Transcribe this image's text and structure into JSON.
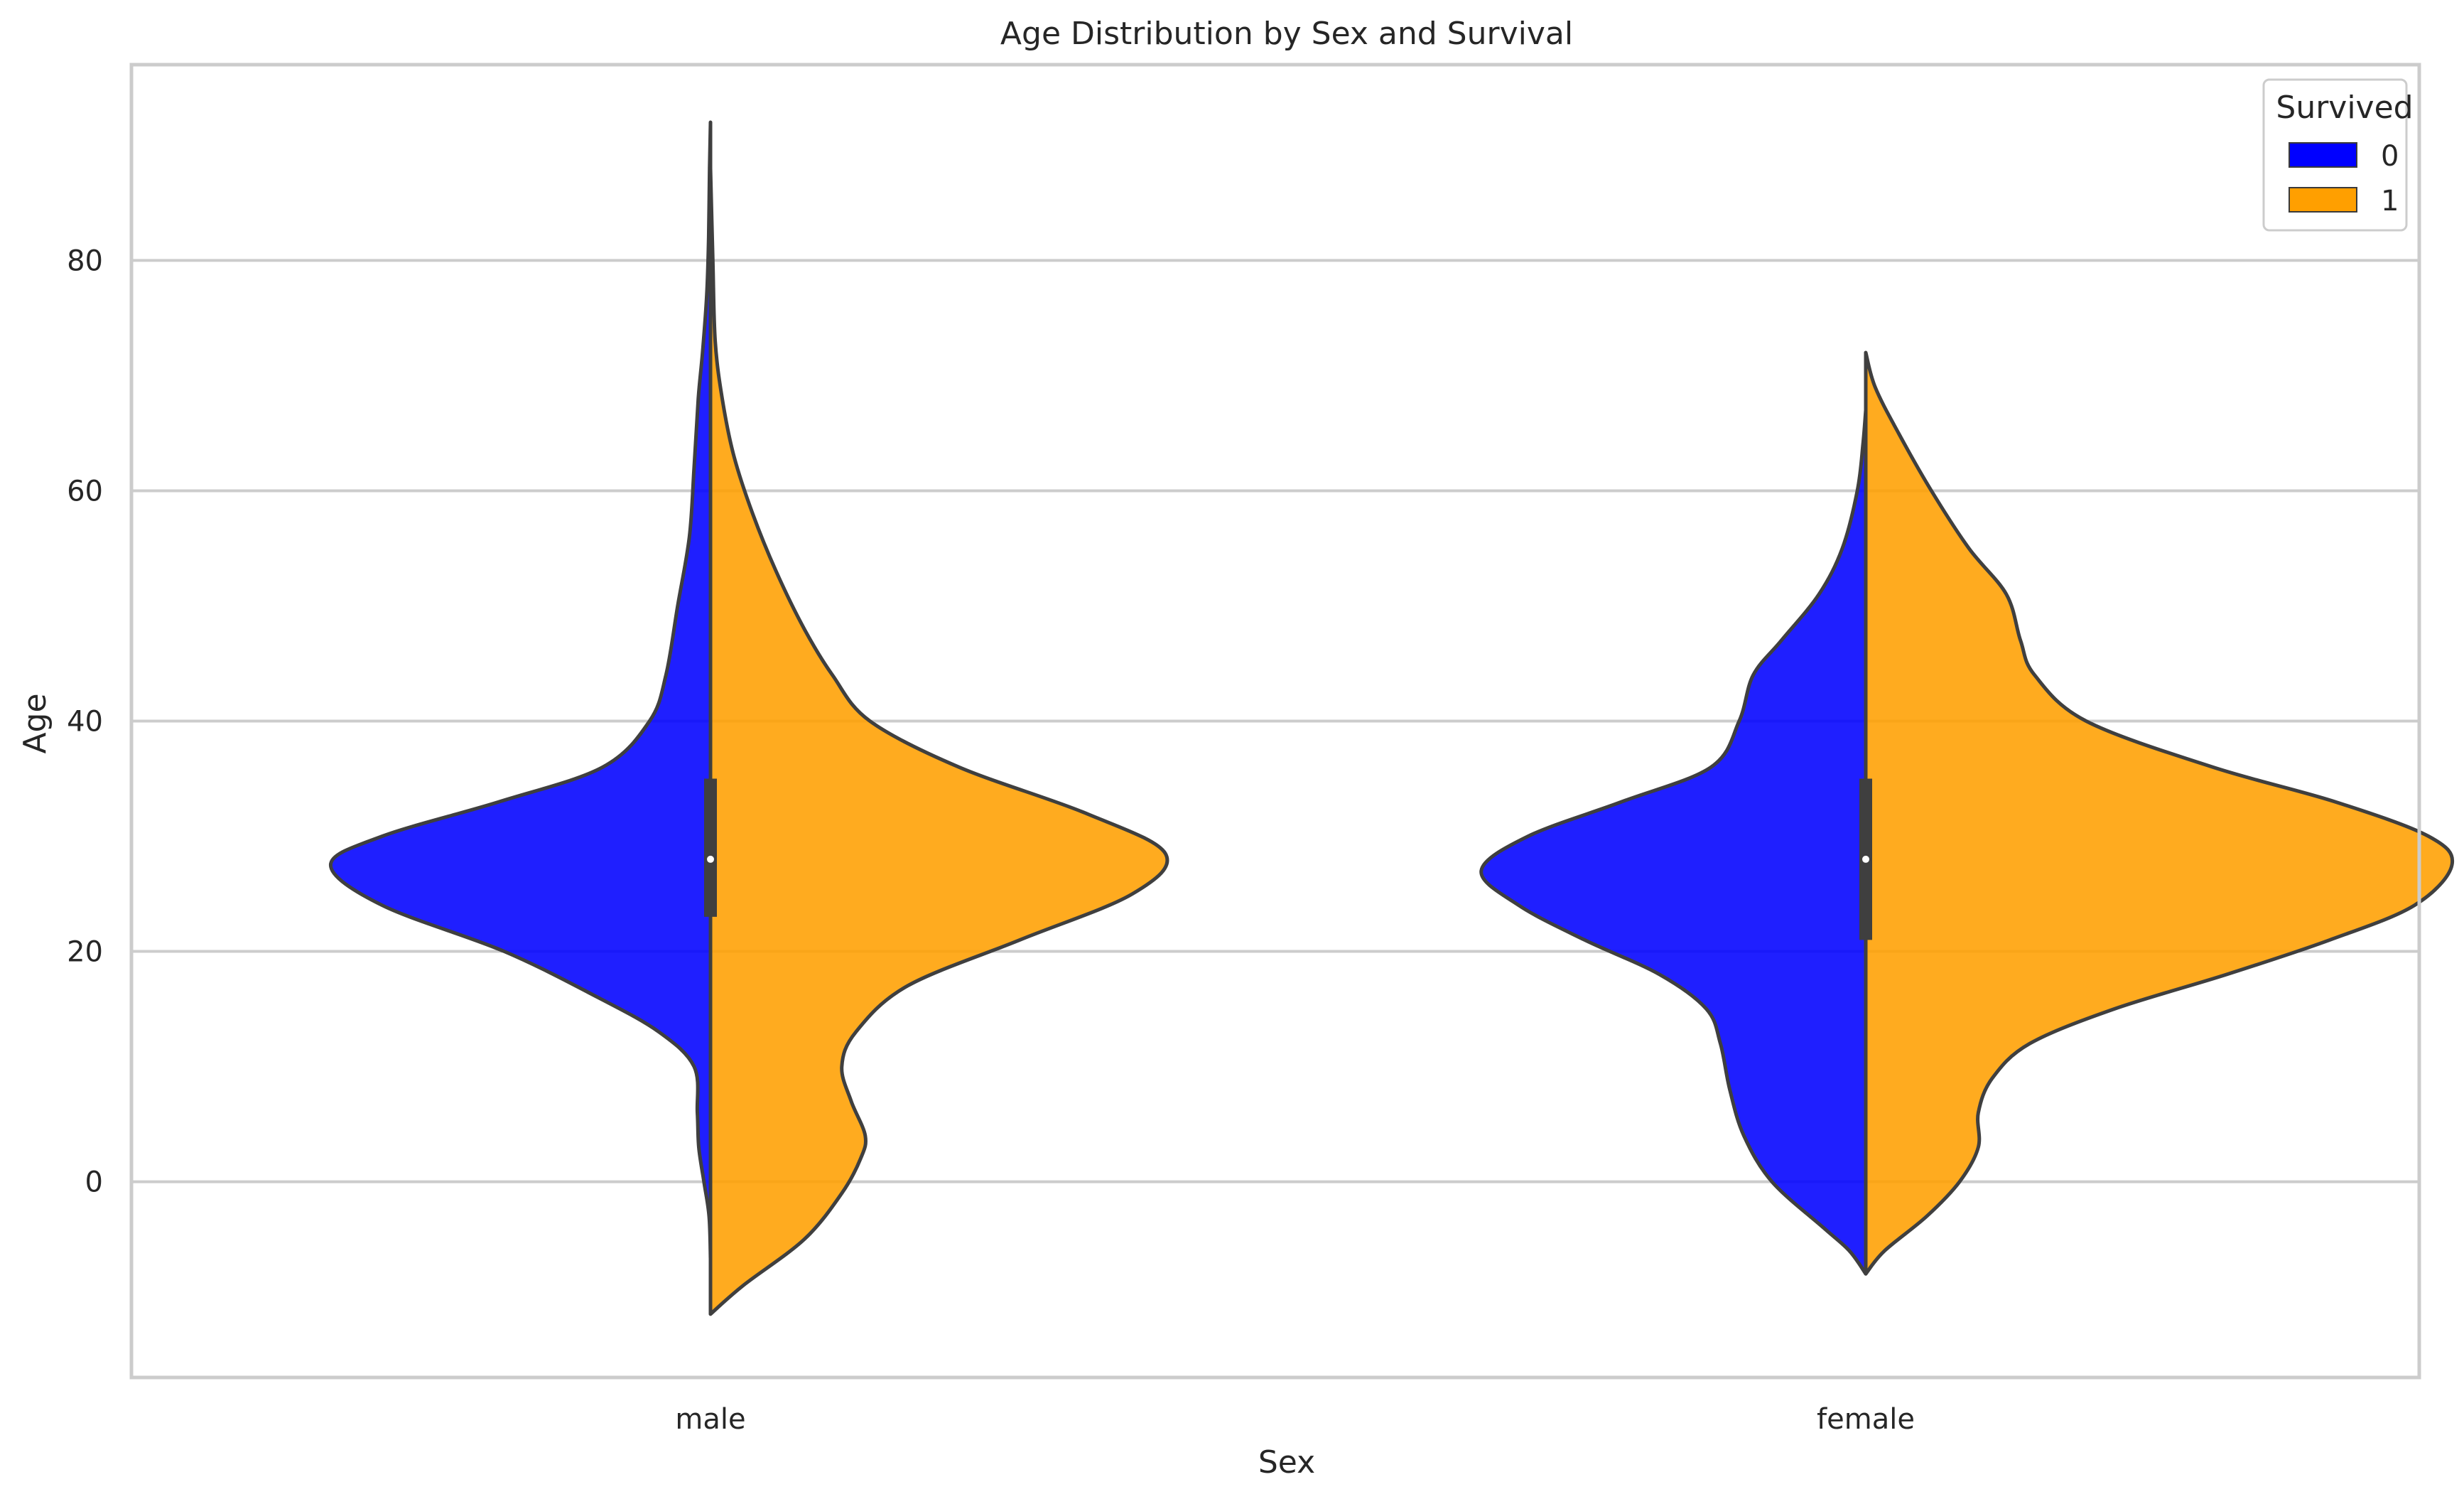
{
  "chart_data": {
    "type": "violin",
    "title": "Age Distribution by Sex and Survival",
    "xlabel": "Sex",
    "ylabel": "Age",
    "categories": [
      "male",
      "female"
    ],
    "ylim": [
      -17,
      97
    ],
    "yticks": [
      0,
      20,
      40,
      60,
      80
    ],
    "grid": true,
    "split": true,
    "legend": {
      "title": "Survived",
      "placement": "top-right",
      "entries": [
        "0",
        "1"
      ]
    },
    "series": [
      {
        "name": "0",
        "color": "#0000ff",
        "violins": [
          {
            "category": "male",
            "profile": [
              [
                -6.7,
                0.0
              ],
              [
                -3,
                0.003
              ],
              [
                0,
                0.014
              ],
              [
                3,
                0.025
              ],
              [
                6,
                0.028
              ],
              [
                10,
                0.035
              ],
              [
                13,
                0.11
              ],
              [
                16,
                0.24
              ],
              [
                20,
                0.44
              ],
              [
                24,
                0.7
              ],
              [
                27.5,
                0.81
              ],
              [
                30,
                0.7
              ],
              [
                33,
                0.45
              ],
              [
                36,
                0.23
              ],
              [
                40,
                0.13
              ],
              [
                44,
                0.095
              ],
              [
                50,
                0.07
              ],
              [
                56,
                0.045
              ],
              [
                62,
                0.035
              ],
              [
                68,
                0.026
              ],
              [
                72,
                0.017
              ],
              [
                77,
                0.008
              ],
              [
                82,
                0.004
              ],
              [
                88,
                0.002
              ],
              [
                92,
                0.0
              ]
            ]
          },
          {
            "category": "female",
            "profile": [
              [
                -8,
                0.0
              ],
              [
                -6,
                0.035
              ],
              [
                -4,
                0.09
              ],
              [
                0,
                0.2
              ],
              [
                4,
                0.26
              ],
              [
                8,
                0.29
              ],
              [
                12,
                0.31
              ],
              [
                15,
                0.34
              ],
              [
                18,
                0.44
              ],
              [
                21,
                0.6
              ],
              [
                24,
                0.74
              ],
              [
                27,
                0.82
              ],
              [
                30,
                0.72
              ],
              [
                33,
                0.52
              ],
              [
                36,
                0.33
              ],
              [
                40,
                0.27
              ],
              [
                44,
                0.24
              ],
              [
                47,
                0.18
              ],
              [
                51,
                0.1
              ],
              [
                55,
                0.05
              ],
              [
                60,
                0.018
              ],
              [
                64,
                0.006
              ],
              [
                67,
                0.0
              ]
            ]
          }
        ]
      },
      {
        "name": "1",
        "color": "#ff9f00",
        "violins": [
          {
            "category": "male",
            "profile": [
              [
                -11.5,
                0.0
              ],
              [
                -9,
                0.07
              ],
              [
                -5,
                0.2
              ],
              [
                -1,
                0.28
              ],
              [
                2,
                0.32
              ],
              [
                4,
                0.33
              ],
              [
                7,
                0.3
              ],
              [
                10,
                0.28
              ],
              [
                13,
                0.31
              ],
              [
                17,
                0.42
              ],
              [
                21,
                0.66
              ],
              [
                25,
                0.9
              ],
              [
                28.5,
                0.97
              ],
              [
                32,
                0.8
              ],
              [
                36,
                0.53
              ],
              [
                40,
                0.34
              ],
              [
                44,
                0.26
              ],
              [
                48,
                0.2
              ],
              [
                53,
                0.14
              ],
              [
                58,
                0.09
              ],
              [
                63,
                0.05
              ],
              [
                68,
                0.025
              ],
              [
                73,
                0.01
              ],
              [
                80,
                0.005
              ],
              [
                88,
                0.0
              ]
            ]
          },
          {
            "category": "female",
            "profile": [
              [
                -8,
                0.0
              ],
              [
                -6,
                0.04
              ],
              [
                -3,
                0.13
              ],
              [
                0,
                0.2
              ],
              [
                3,
                0.24
              ],
              [
                6,
                0.24
              ],
              [
                9,
                0.27
              ],
              [
                12,
                0.35
              ],
              [
                15,
                0.53
              ],
              [
                18,
                0.77
              ],
              [
                21,
                0.99
              ],
              [
                24,
                1.17
              ],
              [
                27.5,
                1.25
              ],
              [
                30,
                1.2
              ],
              [
                33,
                1.0
              ],
              [
                36,
                0.74
              ],
              [
                40,
                0.47
              ],
              [
                44,
                0.36
              ],
              [
                47,
                0.33
              ],
              [
                51,
                0.3
              ],
              [
                55,
                0.22
              ],
              [
                60,
                0.14
              ],
              [
                65,
                0.07
              ],
              [
                69,
                0.02
              ],
              [
                72,
                0.0
              ]
            ]
          }
        ]
      }
    ],
    "inner_box": [
      {
        "category": "male",
        "q1": 23,
        "median": 28,
        "q3": 35
      },
      {
        "category": "female",
        "q1": 21,
        "median": 28,
        "q3": 35
      }
    ]
  }
}
